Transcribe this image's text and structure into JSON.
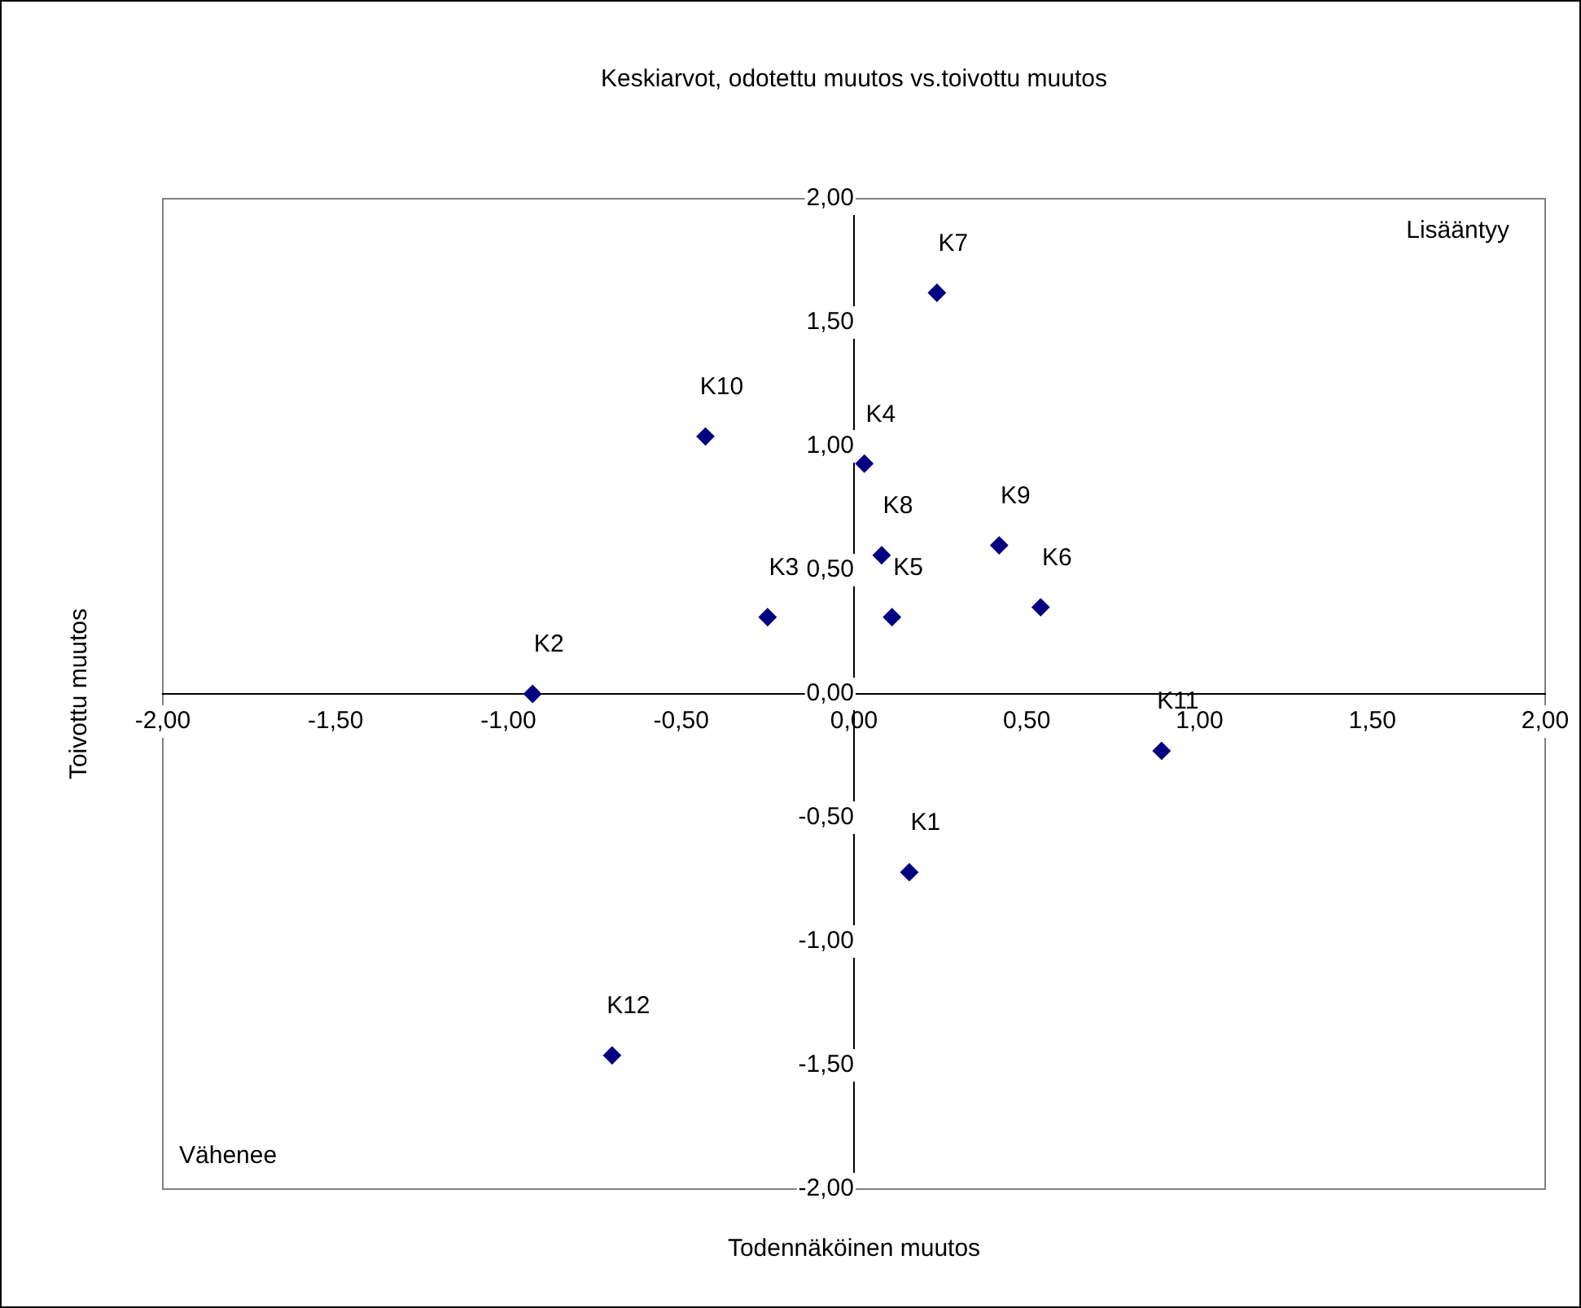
{
  "chart_data": {
    "type": "scatter",
    "title": "Keskiarvot, odotettu muutos vs.toivottu muutos",
    "xlabel": "Todennäköinen muutos",
    "ylabel": "Toivottu muutos",
    "series": [
      {
        "color": "#000080",
        "x": [
          0.16,
          -0.93,
          -0.25,
          0.03,
          0.11,
          0.54,
          0.24,
          0.08,
          0.42,
          -0.43,
          0.89,
          -0.7
        ],
        "values": [
          -0.72,
          0.0,
          0.31,
          0.93,
          0.31,
          0.35,
          1.62,
          0.56,
          0.6,
          1.04,
          -0.23,
          -1.46
        ]
      }
    ],
    "xlim": [
      -2,
      2
    ],
    "ylim": [
      -2,
      2
    ],
    "xticks": [
      {
        "value": -2,
        "label": "-2,00"
      },
      {
        "value": -1.5,
        "label": "-1,50"
      },
      {
        "value": -1,
        "label": "-1,00"
      },
      {
        "value": -0.5,
        "label": "-0,50"
      },
      {
        "value": 0,
        "label": "0,00"
      },
      {
        "value": 0.5,
        "label": "0,50"
      },
      {
        "value": 1,
        "label": "1,00"
      },
      {
        "value": 1.5,
        "label": "1,50"
      },
      {
        "value": 2,
        "label": "2,00"
      }
    ],
    "yticks": [
      {
        "value": -2,
        "label": "-2,00"
      },
      {
        "value": -1.5,
        "label": "-1,50"
      },
      {
        "value": -1,
        "label": "-1,00"
      },
      {
        "value": -0.5,
        "label": "-0,50"
      },
      {
        "value": 0,
        "label": "0,00"
      },
      {
        "value": 0.5,
        "label": "0,50"
      },
      {
        "value": 1,
        "label": "1,00"
      },
      {
        "value": 1.5,
        "label": "1,50"
      },
      {
        "value": 2,
        "label": "2,00"
      }
    ],
    "annotations": [
      "Lisääntyy",
      "Vähenee",
      {
        "text": "K1",
        "x": 0.16,
        "y": -0.72
      },
      {
        "text": "K2",
        "x": -0.93,
        "y": 0.0
      },
      {
        "text": "K3",
        "x": -0.25,
        "y": 0.31
      },
      {
        "text": "K4",
        "x": 0.03,
        "y": 0.93
      },
      {
        "text": "K5",
        "x": 0.11,
        "y": 0.31
      },
      {
        "text": "K6",
        "x": 0.54,
        "y": 0.35
      },
      {
        "text": "K7",
        "x": 0.24,
        "y": 1.62
      },
      {
        "text": "K8",
        "x": 0.08,
        "y": 0.56
      },
      {
        "text": "K9",
        "x": 0.42,
        "y": 0.6
      },
      {
        "text": "K10",
        "x": -0.43,
        "y": 1.04
      },
      {
        "text": "K11",
        "x": 0.89,
        "y": -0.23
      },
      {
        "text": "K12",
        "x": -0.7,
        "y": -1.46
      }
    ],
    "grid": false,
    "legend": false,
    "marker": "diamond"
  }
}
